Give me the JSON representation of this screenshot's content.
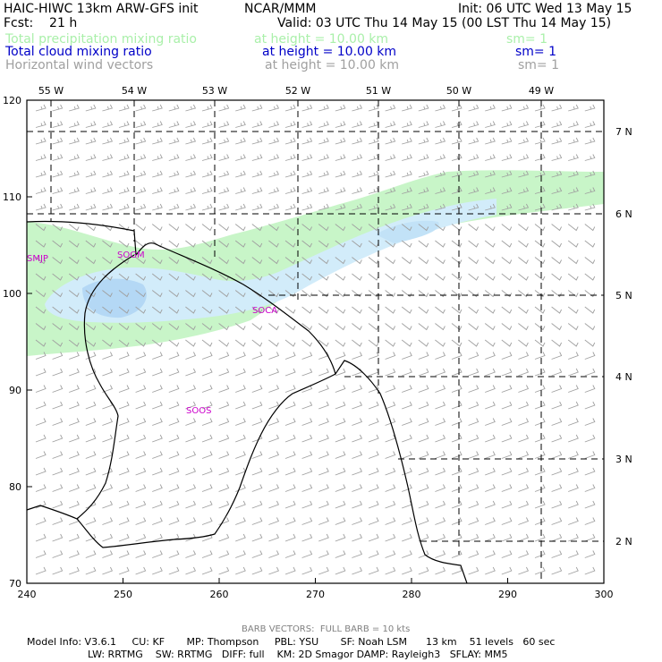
{
  "header": {
    "model_line": "HAIC-HIWC 13km ARW-GFS init",
    "org": "NCAR/MMM",
    "init": "Init: 06 UTC Wed 13 May 15",
    "fcst": "Fcst:    21 h",
    "valid": "Valid: 03 UTC Thu 14 May 15 (00 LST Thu 14 May 15)"
  },
  "fields": [
    {
      "name": "Total precipitation mixing ratio",
      "height": "at height = 10.00 km",
      "sm": "sm= 1",
      "color": "#aaf0aa"
    },
    {
      "name": "Total cloud mixing ratio",
      "height": "at height = 10.00 km",
      "sm": "sm= 1",
      "color": "#0000c8"
    },
    {
      "name": "Horizontal wind vectors",
      "height": "at height = 10.00 km",
      "sm": "sm= 1",
      "color": "#a0a0a0"
    }
  ],
  "axes": {
    "x_ticks": [
      "240",
      "250",
      "260",
      "270",
      "280",
      "290",
      "300"
    ],
    "y_ticks": [
      "70",
      "80",
      "90",
      "100",
      "110",
      "120"
    ],
    "lon_labels": [
      "55 W",
      "54 W",
      "53 W",
      "52 W",
      "51 W",
      "50 W",
      "49 W"
    ],
    "lat_labels": [
      "7 N",
      "6 N",
      "5 N",
      "4 N",
      "3 N",
      "2 N"
    ]
  },
  "stations": [
    "SMJP",
    "SOGM",
    "SOCA",
    "SOOS"
  ],
  "footer": {
    "barb": "BARB VECTORS:  FULL BARB = 10 kts",
    "line1": "Model Info: V3.6.1     CU: KF       MP: Thompson     PBL: YSU       SF: Noah LSM      13 km    51 levels   60 sec",
    "line2": "LW: RRTMG    SW: RRTMG   DIFF: full    KM: 2D Smagor DAMP: Rayleigh3   SFLAY: MM5"
  },
  "colors": {
    "precip": "#c8f5c8",
    "cloud_light": "#d2ecfa",
    "cloud_mid": "#b4d8f5",
    "barb": "#a0a0a0",
    "coast": "#000000",
    "station": "#cc00cc"
  }
}
